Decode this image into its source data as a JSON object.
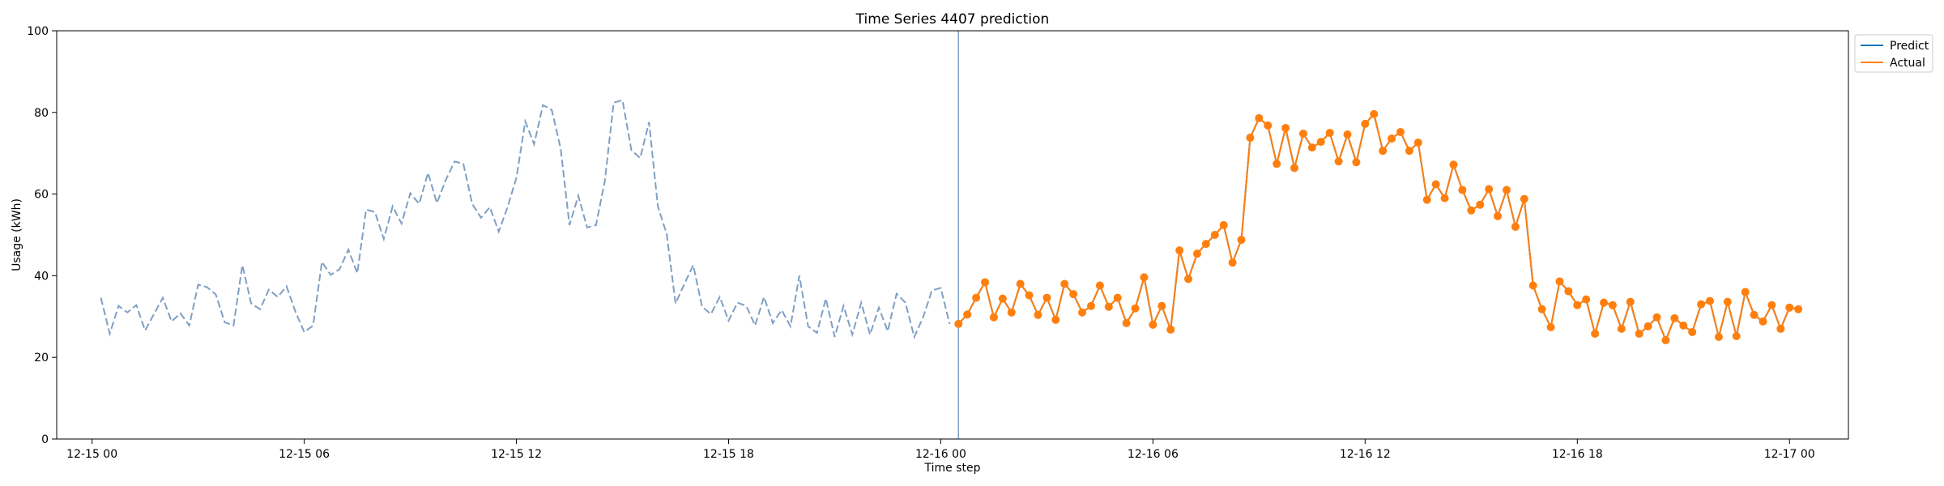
{
  "chart_data": {
    "type": "line",
    "title": "Time Series 4407 prediction",
    "xlabel": "Time step",
    "ylabel": "Usage (kWh)",
    "ylim": [
      0,
      100
    ],
    "xlim": [
      "2024-12-14 23:00",
      "2024-12-17 01:40"
    ],
    "y_ticks": [
      0,
      20,
      40,
      60,
      80,
      100
    ],
    "x_ticks": [
      {
        "t": "2024-12-15 00:00",
        "label": "12-15 00"
      },
      {
        "t": "2024-12-15 06:00",
        "label": "12-15 06"
      },
      {
        "t": "2024-12-15 12:00",
        "label": "12-15 12"
      },
      {
        "t": "2024-12-15 18:00",
        "label": "12-15 18"
      },
      {
        "t": "2024-12-16 00:00",
        "label": "12-16 00"
      },
      {
        "t": "2024-12-16 06:00",
        "label": "12-16 06"
      },
      {
        "t": "2024-12-16 12:00",
        "label": "12-16 12"
      },
      {
        "t": "2024-12-16 18:00",
        "label": "12-16 18"
      },
      {
        "t": "2024-12-17 00:00",
        "label": "12-17 00"
      }
    ],
    "grid": false,
    "legend_position": "outside-top-right",
    "forecast_start": "2024-12-16 00:30",
    "series": [
      {
        "name": "Predict",
        "color": "#1f77b4",
        "style": "solid",
        "x_start": "2024-12-16 00:30",
        "step_minutes": 15,
        "values": [
          28.2,
          30.5,
          34.6,
          38.4,
          29.8,
          34.4,
          31.0,
          38.0,
          35.2,
          30.4,
          34.6,
          29.2,
          38.0,
          35.5,
          31.0,
          32.6,
          37.6,
          32.4,
          34.6,
          28.4,
          32.0,
          39.6,
          28.0,
          32.6,
          26.8,
          46.2,
          39.2,
          45.4,
          47.8,
          50.0,
          52.4,
          43.2,
          48.8,
          73.8,
          78.6,
          76.8,
          67.4,
          76.2,
          66.4,
          74.8,
          71.4,
          72.8,
          75.0,
          68.0,
          74.6,
          67.8,
          77.2,
          79.6,
          70.6,
          73.6,
          75.2,
          70.6,
          72.6,
          58.6,
          62.4,
          59.0,
          67.2,
          61.0,
          56.0,
          57.4,
          61.2,
          54.6,
          61.0,
          52.0,
          58.8,
          37.6,
          31.8,
          27.4,
          38.6,
          36.2,
          32.8,
          34.2,
          25.8,
          33.4,
          32.8,
          27.0,
          33.6,
          25.8,
          27.6,
          29.8,
          24.2,
          29.6,
          27.8,
          26.2,
          33.0,
          33.8,
          25.0,
          33.6,
          25.2,
          36.0,
          30.4,
          28.8,
          32.8,
          27.0,
          32.2,
          31.8
        ]
      },
      {
        "name": "Actual",
        "color": "#ff7f0e",
        "style": "solid-markers",
        "x_start": "2024-12-16 00:30",
        "step_minutes": 15,
        "values": [
          28.2,
          30.5,
          34.6,
          38.4,
          29.8,
          34.4,
          31.0,
          38.0,
          35.2,
          30.4,
          34.6,
          29.2,
          38.0,
          35.5,
          31.0,
          32.6,
          37.6,
          32.4,
          34.6,
          28.4,
          32.0,
          39.6,
          28.0,
          32.6,
          26.8,
          46.2,
          39.2,
          45.4,
          47.8,
          50.0,
          52.4,
          43.2,
          48.8,
          73.8,
          78.6,
          76.8,
          67.4,
          76.2,
          66.4,
          74.8,
          71.4,
          72.8,
          75.0,
          68.0,
          74.6,
          67.8,
          77.2,
          79.6,
          70.6,
          73.6,
          75.2,
          70.6,
          72.6,
          58.6,
          62.4,
          59.0,
          67.2,
          61.0,
          56.0,
          57.4,
          61.2,
          54.6,
          61.0,
          52.0,
          58.8,
          37.6,
          31.8,
          27.4,
          38.6,
          36.2,
          32.8,
          34.2,
          25.8,
          33.4,
          32.8,
          27.0,
          33.6,
          25.8,
          27.6,
          29.8,
          24.2,
          29.6,
          27.8,
          26.2,
          33.0,
          33.8,
          25.0,
          33.6,
          25.2,
          36.0,
          30.4,
          28.8,
          32.8,
          27.0,
          32.2,
          31.8
        ]
      },
      {
        "name": "",
        "color": "#7f9fc4",
        "style": "dashed",
        "x_start": "2024-12-15 00:15",
        "step_minutes": 15,
        "values": [
          34.6,
          25.8,
          32.6,
          31.0,
          32.8,
          26.6,
          30.6,
          34.6,
          28.8,
          30.8,
          27.8,
          37.8,
          37.2,
          35.4,
          28.6,
          27.8,
          42.6,
          33.2,
          31.8,
          36.6,
          34.8,
          37.4,
          31.2,
          26.2,
          27.8,
          43.4,
          40.2,
          41.6,
          46.4,
          40.6,
          56.2,
          55.6,
          49.0,
          57.0,
          52.8,
          60.2,
          57.6,
          65.2,
          57.8,
          63.4,
          68.0,
          67.4,
          57.6,
          54.2,
          56.8,
          50.8,
          56.8,
          64.0,
          77.8,
          72.2,
          81.8,
          80.6,
          71.2,
          52.4,
          59.6,
          51.8,
          52.4,
          63.2,
          82.4,
          83.0,
          70.8,
          68.8,
          77.6,
          57.0,
          50.2,
          33.2,
          38.0,
          42.6,
          32.4,
          30.6,
          34.8,
          29.0,
          33.4,
          32.6,
          27.8,
          34.8,
          28.4,
          31.6,
          27.6,
          40.0,
          27.6,
          26.0,
          34.4,
          25.0,
          32.6,
          25.6,
          33.4,
          25.6,
          32.2,
          26.4,
          35.6,
          33.4,
          25.0,
          29.8,
          36.4,
          37.0,
          28.2
        ]
      }
    ]
  }
}
